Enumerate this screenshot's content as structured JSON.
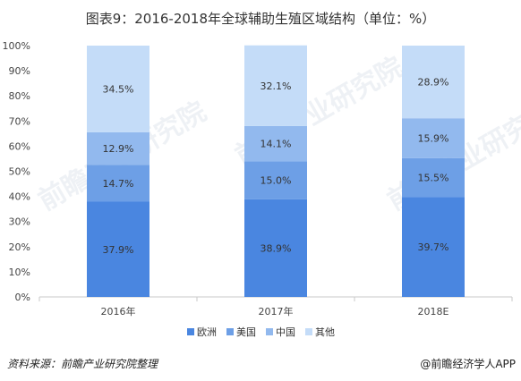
{
  "chart_data": {
    "type": "bar",
    "stacked": true,
    "percent_stacked": true,
    "title": "图表9：2016-2018年全球辅助生殖区域结构（单位：%）",
    "categories": [
      "2016年",
      "2017年",
      "2018E"
    ],
    "series": [
      {
        "name": "欧洲",
        "color": "#4a86e0",
        "values": [
          37.9,
          38.9,
          39.7
        ]
      },
      {
        "name": "美国",
        "color": "#6d9fe6",
        "values": [
          14.7,
          15.0,
          15.5
        ]
      },
      {
        "name": "中国",
        "color": "#92b9ee",
        "values": [
          12.9,
          14.1,
          15.9
        ]
      },
      {
        "name": "其他",
        "color": "#c4dcf8",
        "values": [
          34.5,
          32.1,
          28.9
        ]
      }
    ],
    "data_labels": [
      [
        "37.9%",
        "38.9%",
        "39.7%"
      ],
      [
        "14.7%",
        "15.0%",
        "15.5%"
      ],
      [
        "12.9%",
        "14.1%",
        "15.9%"
      ],
      [
        "34.5%",
        "32.1%",
        "28.9%"
      ]
    ],
    "yticks": [
      "0%",
      "10%",
      "20%",
      "30%",
      "40%",
      "50%",
      "60%",
      "70%",
      "80%",
      "90%",
      "100%"
    ],
    "ylim": [
      0,
      100
    ],
    "grid": false,
    "legend_position": "bottom"
  },
  "footer": {
    "source": "资料来源：前瞻产业研究院整理",
    "credit": "@前瞻经济学人APP"
  },
  "watermark": {
    "text": "前瞻产业研究院"
  }
}
